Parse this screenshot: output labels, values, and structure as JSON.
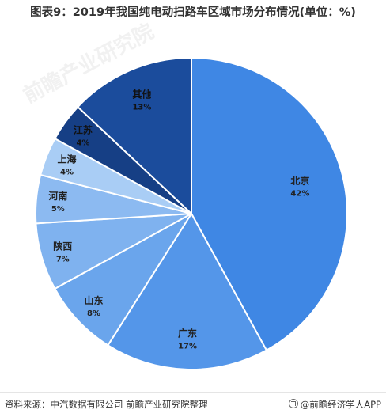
{
  "title": "图表9：2019年我国纯电动扫路车区域市场分布情况(单位：%)",
  "source": "资料来源：中汽数据有限公司 前瞻产业研究院整理",
  "brand": "@前瞻经济学人APP",
  "watermark_text": "前瞻产业研究院",
  "chart_data": {
    "type": "pie",
    "title": "图表9：2019年我国纯电动扫路车区域市场分布情况(单位：%)",
    "categories": [
      "北京",
      "广东",
      "山东",
      "陕西",
      "河南",
      "上海",
      "江苏",
      "其他"
    ],
    "values": [
      42,
      17,
      8,
      7,
      5,
      4,
      4,
      13
    ],
    "value_labels": [
      "42%",
      "17%",
      "8%",
      "7%",
      "5%",
      "4%",
      "4%",
      "13%"
    ],
    "colors": [
      "#3f87e4",
      "#5496e9",
      "#6aa5ec",
      "#7fb2ef",
      "#8cbaf1",
      "#a9cdf5",
      "#163f85",
      "#1b4c9c"
    ],
    "label_colors": [
      "#222222",
      "#222222",
      "#222222",
      "#222222",
      "#222222",
      "#222222",
      "#111111",
      "#111111"
    ],
    "start_angle_deg": 0,
    "direction": "clockwise",
    "legend": "none"
  }
}
